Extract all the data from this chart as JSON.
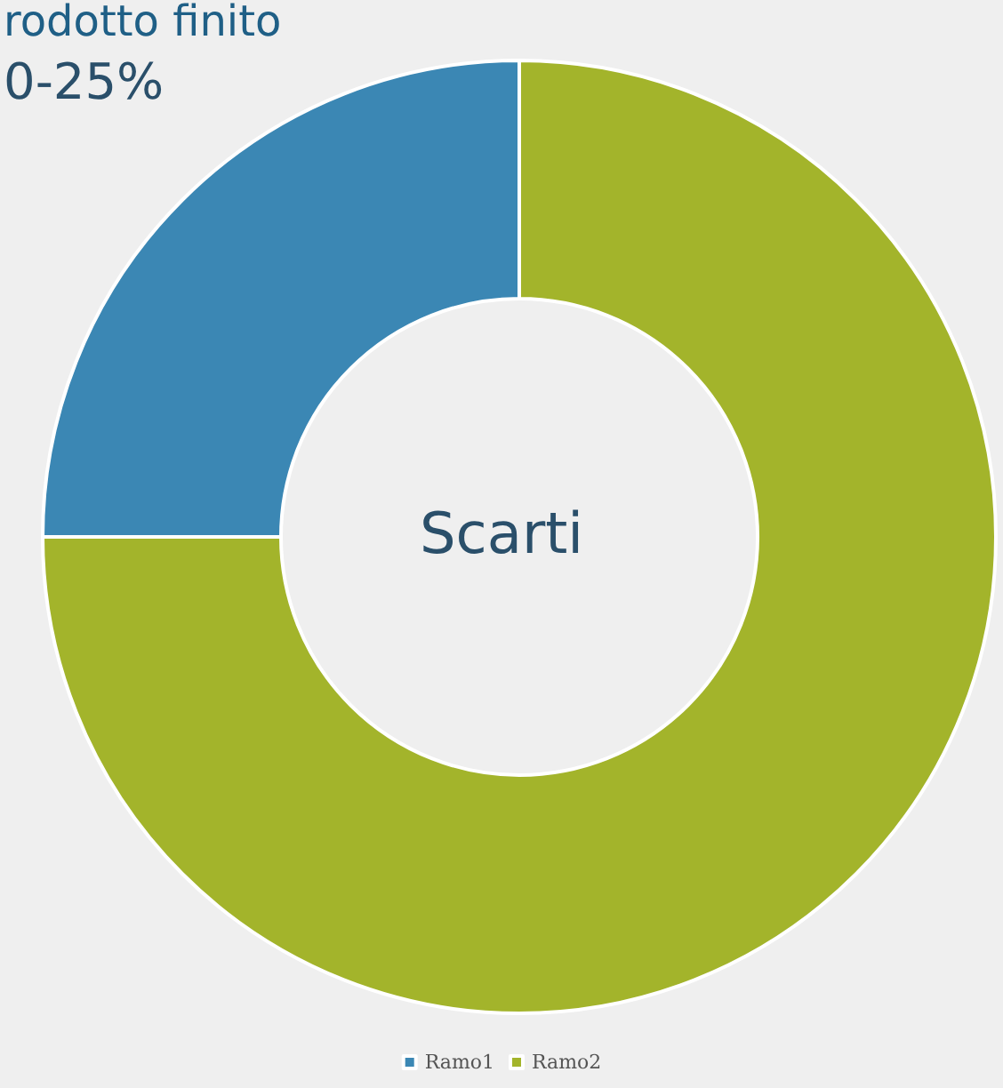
{
  "chart_data": {
    "type": "donut",
    "categories": [
      "Ramo1",
      "Ramo2"
    ],
    "values": [
      25,
      75
    ],
    "colors": [
      "#3b87b4",
      "#a3b42b"
    ],
    "annotations": [
      "rodotto finito",
      "0-25%",
      "Scarti"
    ],
    "legend": "bottom"
  }
}
